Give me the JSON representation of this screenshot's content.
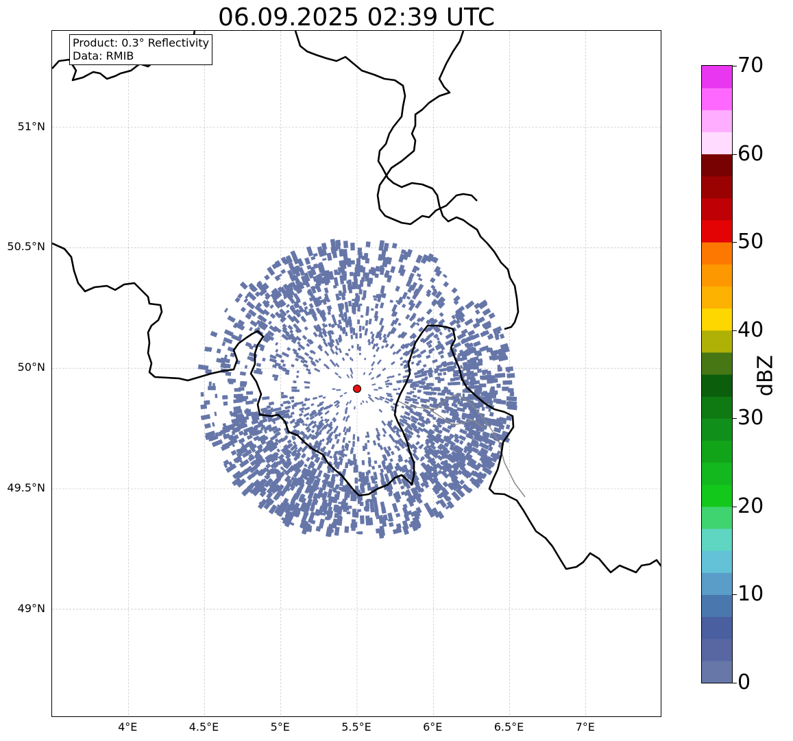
{
  "title": "06.09.2025 02:39 UTC",
  "infobox": {
    "line1": "Product: 0.3° Reflectivity",
    "line2": "Data: RMIB"
  },
  "map": {
    "lon_range": [
      3.5,
      7.5
    ],
    "lat_range": [
      48.55,
      51.4
    ],
    "x_ticks": [
      {
        "value": 4.0,
        "label": "4°E"
      },
      {
        "value": 4.5,
        "label": "4.5°E"
      },
      {
        "value": 5.0,
        "label": "5°E"
      },
      {
        "value": 5.5,
        "label": "5.5°E"
      },
      {
        "value": 6.0,
        "label": "6°E"
      },
      {
        "value": 6.5,
        "label": "6.5°E"
      },
      {
        "value": 7.0,
        "label": "7°E"
      }
    ],
    "y_ticks": [
      {
        "value": 49.0,
        "label": "49°N"
      },
      {
        "value": 49.5,
        "label": "49.5°N"
      },
      {
        "value": 50.0,
        "label": "50°N"
      },
      {
        "value": 50.5,
        "label": "50.5°N"
      },
      {
        "value": 51.0,
        "label": "51°N"
      }
    ],
    "grid": true,
    "radar_site": {
      "lon": 5.5,
      "lat": 49.915,
      "color": "#e81010"
    },
    "echo_color": "#6676a8",
    "echo_range_deg": 1.05,
    "border_color": "#000000",
    "river_color": "#888888"
  },
  "colorbar": {
    "label": "dBZ",
    "min": 0,
    "max": 70,
    "step": 2.5,
    "ticks": [
      {
        "value": 0,
        "label": "0"
      },
      {
        "value": 10,
        "label": "10"
      },
      {
        "value": 20,
        "label": "20"
      },
      {
        "value": 30,
        "label": "30"
      },
      {
        "value": 40,
        "label": "40"
      },
      {
        "value": 50,
        "label": "50"
      },
      {
        "value": 60,
        "label": "60"
      },
      {
        "value": 70,
        "label": "70"
      }
    ],
    "colors": [
      "#6777a8",
      "#5867a2",
      "#4a5fa0",
      "#4a78ae",
      "#5a9dc8",
      "#63c1d8",
      "#5ed6c2",
      "#3fd46f",
      "#12c81a",
      "#13b81f",
      "#12a418",
      "#10901a",
      "#0f7a12",
      "#0b5e0c",
      "#467714",
      "#b0b106",
      "#fed700",
      "#fdb100",
      "#fd9800",
      "#fd7800",
      "#e40304",
      "#bf0004",
      "#9a0202",
      "#780101",
      "#ffdcff",
      "#ffaeff",
      "#ff68ff",
      "#e936f0"
    ]
  }
}
